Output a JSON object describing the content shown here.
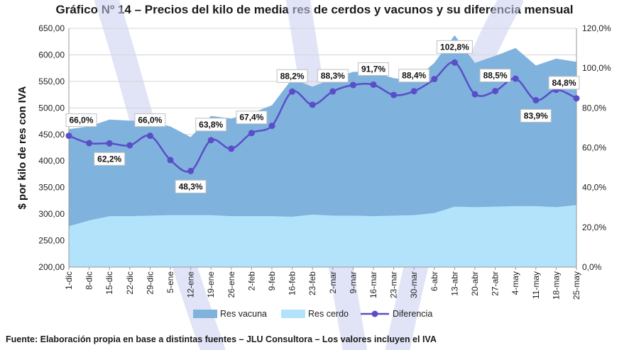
{
  "title": "Gráfico Nº 14 – Precios del kilo de media res de cerdos y vacunos y su diferencia mensual",
  "source": "Fuente: Elaboración propia en base a distintas fuentes – JLU Consultora – Los valores incluyen el IVA",
  "chart_data": {
    "type": "area",
    "title": "Gráfico Nº 14 – Precios del kilo de media res de cerdos y vacunos y su diferencia mensual",
    "ylabel": "$ por kilo de res con IVA",
    "y2label": "",
    "ylim": [
      200,
      650
    ],
    "y2lim": [
      0,
      120
    ],
    "yticks": [
      "200,00",
      "250,00",
      "300,00",
      "350,00",
      "400,00",
      "450,00",
      "500,00",
      "550,00",
      "600,00",
      "650,00"
    ],
    "y2ticks": [
      "0,0%",
      "20,0%",
      "40,0%",
      "60,0%",
      "80,0%",
      "100,0%",
      "120,0%"
    ],
    "categories": [
      "1-dic",
      "8-dic",
      "15-dic",
      "22-dic",
      "29-dic",
      "5-ene",
      "12-ene",
      "19-ene",
      "26-ene",
      "2-feb",
      "9-feb",
      "16-feb",
      "23-feb",
      "2-mar",
      "9-mar",
      "16-mar",
      "23-mar",
      "30-mar",
      "6-abr",
      "13-abr",
      "20-abr",
      "27-abr",
      "4-may",
      "11-may",
      "18-may",
      "25-may"
    ],
    "series": [
      {
        "name": "Res vacuna",
        "type": "area",
        "axis": "left",
        "values": [
          460,
          465,
          478,
          476,
          475,
          465,
          445,
          485,
          480,
          490,
          505,
          555,
          540,
          555,
          568,
          568,
          556,
          552,
          585,
          637,
          585,
          598,
          613,
          580,
          593,
          587
        ]
      },
      {
        "name": "Res cerdo",
        "type": "area",
        "axis": "left",
        "values": [
          277,
          288,
          296,
          296,
          297,
          298,
          298,
          298,
          296,
          296,
          296,
          295,
          299,
          297,
          297,
          296,
          297,
          298,
          302,
          314,
          313,
          314,
          315,
          315,
          313,
          317
        ]
      },
      {
        "name": "Diferencia",
        "type": "line",
        "axis": "right",
        "values": [
          66.0,
          62.3,
          62.2,
          61.2,
          66.0,
          53.8,
          48.3,
          63.8,
          59.5,
          67.4,
          71.0,
          88.2,
          81.6,
          88.3,
          91.5,
          91.7,
          86.5,
          88.4,
          94.5,
          102.8,
          86.9,
          88.5,
          94.7,
          83.9,
          89.1,
          84.8
        ]
      }
    ],
    "data_labels": [
      {
        "index": 0,
        "text": "66,0%"
      },
      {
        "index": 2,
        "text": "62,2%"
      },
      {
        "index": 4,
        "text": "66,0%"
      },
      {
        "index": 6,
        "text": "48,3%"
      },
      {
        "index": 7,
        "text": "63,8%"
      },
      {
        "index": 9,
        "text": "67,4%"
      },
      {
        "index": 11,
        "text": "88,2%"
      },
      {
        "index": 13,
        "text": "88,3%"
      },
      {
        "index": 15,
        "text": "91,7%"
      },
      {
        "index": 17,
        "text": "88,4%"
      },
      {
        "index": 19,
        "text": "102,8%"
      },
      {
        "index": 21,
        "text": "88,5%"
      },
      {
        "index": 23,
        "text": "83,9%"
      },
      {
        "index": 25,
        "text": "84,8%"
      }
    ],
    "legend": "bottom",
    "grid": true,
    "colors": {
      "vacuna": "#7fb2dc",
      "cerdo": "#b3e3fb",
      "diferencia": "#5a4ec8",
      "grid": "#d4d4d4"
    }
  }
}
